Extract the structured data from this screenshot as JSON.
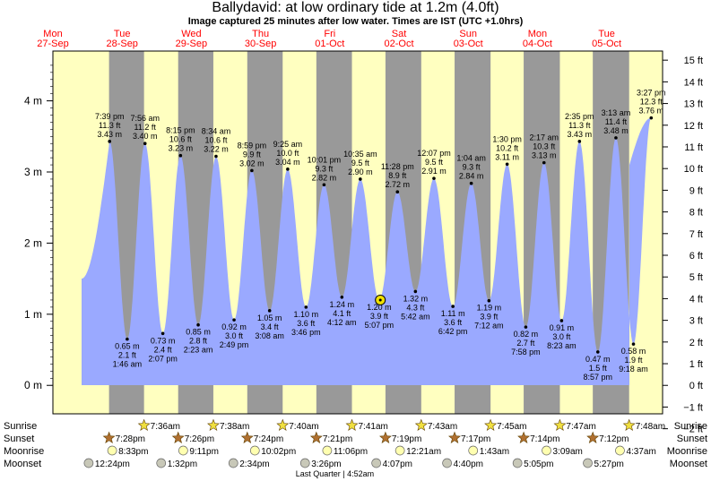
{
  "header": {
    "title": "Ballydavid: at low  ordinary tide at 1.2m (4.0ft)",
    "subtitle": "Image captured 25 minutes after low water. Times are IST (UTC +1.0hrs)"
  },
  "colors": {
    "day": "#ffffc0",
    "night": "#999999",
    "water": "#9aa9ff",
    "weekday_text": "#ff0000",
    "sunrise_star": "#f0e040",
    "sunset_star": "#b07030",
    "moonrise": "#ffffb0",
    "moonset": "#c8c8b8"
  },
  "chart_data": {
    "type": "area",
    "y_left_unit": "m",
    "y_right_unit": "ft",
    "y_left_ticks": [
      "0 m",
      "1 m",
      "2 m",
      "3 m",
      "4 m"
    ],
    "y_left_tick_values": [
      0,
      1,
      2,
      3,
      4
    ],
    "y_right_ticks": [
      "−2 ft",
      "−1 ft",
      "0 ft",
      "1 ft",
      "2 ft",
      "3 ft",
      "4 ft",
      "5 ft",
      "6 ft",
      "7 ft",
      "8 ft",
      "9 ft",
      "10 ft",
      "11 ft",
      "12 ft",
      "13 ft",
      "14 ft",
      "15 ft"
    ],
    "y_right_tick_values": [
      -2,
      -1,
      0,
      1,
      2,
      3,
      4,
      5,
      6,
      7,
      8,
      9,
      10,
      11,
      12,
      13,
      14,
      15
    ],
    "ylim_m": [
      -0.4,
      4.7
    ],
    "days": [
      {
        "weekday": "Mon",
        "date": "27-Sep"
      },
      {
        "weekday": "Tue",
        "date": "28-Sep"
      },
      {
        "weekday": "Wed",
        "date": "29-Sep"
      },
      {
        "weekday": "Thu",
        "date": "30-Sep"
      },
      {
        "weekday": "Fri",
        "date": "01-Oct"
      },
      {
        "weekday": "Sat",
        "date": "02-Oct"
      },
      {
        "weekday": "Sun",
        "date": "03-Oct"
      },
      {
        "weekday": "Mon",
        "date": "04-Oct"
      },
      {
        "weekday": "Tue",
        "date": "05-Oct"
      }
    ],
    "tides": [
      {
        "type": "high",
        "day": 0,
        "time": "7:39 pm",
        "ft": "11.3 ft",
        "m": "3.43 m",
        "value": 3.43
      },
      {
        "type": "low",
        "day": 1,
        "time": "1:46 am",
        "ft": "2.1 ft",
        "m": "0.65 m",
        "value": 0.65
      },
      {
        "type": "high",
        "day": 1,
        "time": "7:56 am",
        "ft": "11.2 ft",
        "m": "3.40 m",
        "value": 3.4
      },
      {
        "type": "low",
        "day": 1,
        "time": "2:07 pm",
        "ft": "2.4 ft",
        "m": "0.73 m",
        "value": 0.73
      },
      {
        "type": "high",
        "day": 1,
        "time": "8:15 pm",
        "ft": "10.6 ft",
        "m": "3.23 m",
        "value": 3.23
      },
      {
        "type": "low",
        "day": 2,
        "time": "2:23 am",
        "ft": "2.8 ft",
        "m": "0.85 m",
        "value": 0.85
      },
      {
        "type": "high",
        "day": 2,
        "time": "8:34 am",
        "ft": "10.6 ft",
        "m": "3.22 m",
        "value": 3.22
      },
      {
        "type": "low",
        "day": 2,
        "time": "2:49 pm",
        "ft": "3.0 ft",
        "m": "0.92 m",
        "value": 0.92
      },
      {
        "type": "high",
        "day": 2,
        "time": "8:59 pm",
        "ft": "9.9 ft",
        "m": "3.02 m",
        "value": 3.02
      },
      {
        "type": "low",
        "day": 3,
        "time": "3:08 am",
        "ft": "3.4 ft",
        "m": "1.05 m",
        "value": 1.05
      },
      {
        "type": "high",
        "day": 3,
        "time": "9:25 am",
        "ft": "10.0 ft",
        "m": "3.04 m",
        "value": 3.04
      },
      {
        "type": "low",
        "day": 3,
        "time": "3:46 pm",
        "ft": "3.6 ft",
        "m": "1.10 m",
        "value": 1.1
      },
      {
        "type": "high",
        "day": 3,
        "time": "10:01 pm",
        "ft": "9.3 ft",
        "m": "2.82 m",
        "value": 2.82
      },
      {
        "type": "low",
        "day": 4,
        "time": "4:12 am",
        "ft": "4.1 ft",
        "m": "1.24 m",
        "value": 1.24
      },
      {
        "type": "high",
        "day": 4,
        "time": "10:35 am",
        "ft": "9.5 ft",
        "m": "2.90 m",
        "value": 2.9
      },
      {
        "type": "low",
        "day": 4,
        "time": "5:07 pm",
        "ft": "3.9 ft",
        "m": "1.20 m",
        "value": 1.2
      },
      {
        "type": "high",
        "day": 4,
        "time": "11:28 pm",
        "ft": "8.9 ft",
        "m": "2.72 m",
        "value": 2.72
      },
      {
        "type": "low",
        "day": 5,
        "time": "5:42 am",
        "ft": "4.3 ft",
        "m": "1.32 m",
        "value": 1.32
      },
      {
        "type": "high",
        "day": 5,
        "time": "12:07 pm",
        "ft": "9.5 ft",
        "m": "2.91 m",
        "value": 2.91
      },
      {
        "type": "low",
        "day": 5,
        "time": "6:42 pm",
        "ft": "3.6 ft",
        "m": "1.11 m",
        "value": 1.11
      },
      {
        "type": "high",
        "day": 6,
        "time": "1:04 am",
        "ft": "9.3 ft",
        "m": "2.84 m",
        "value": 2.84
      },
      {
        "type": "low",
        "day": 6,
        "time": "7:12 am",
        "ft": "3.9 ft",
        "m": "1.19 m",
        "value": 1.19
      },
      {
        "type": "high",
        "day": 6,
        "time": "1:30 pm",
        "ft": "10.2 ft",
        "m": "3.11 m",
        "value": 3.11
      },
      {
        "type": "low",
        "day": 6,
        "time": "7:58 pm",
        "ft": "2.7 ft",
        "m": "0.82 m",
        "value": 0.82
      },
      {
        "type": "high",
        "day": 7,
        "time": "2:17 am",
        "ft": "10.3 ft",
        "m": "3.13 m",
        "value": 3.13
      },
      {
        "type": "low",
        "day": 7,
        "time": "8:23 am",
        "ft": "3.0 ft",
        "m": "0.91 m",
        "value": 0.91
      },
      {
        "type": "high",
        "day": 7,
        "time": "2:35 pm",
        "ft": "11.3 ft",
        "m": "3.43 m",
        "value": 3.43
      },
      {
        "type": "low",
        "day": 7,
        "time": "8:57 pm",
        "ft": "1.5 ft",
        "m": "0.47 m",
        "value": 0.47
      },
      {
        "type": "high",
        "day": 8,
        "time": "3:13 am",
        "ft": "11.4 ft",
        "m": "3.48 m",
        "value": 3.48
      },
      {
        "type": "low",
        "day": 8,
        "time": "9:18 am",
        "ft": "1.9 ft",
        "m": "0.58 m",
        "value": 0.58
      },
      {
        "type": "high",
        "day": 8,
        "time": "3:27 pm",
        "ft": "12.3 ft",
        "m": "3.76 m",
        "value": 3.76
      }
    ],
    "current": {
      "day": 4,
      "time": "5:32 pm",
      "value": 1.2
    },
    "sunrise": [
      {
        "day": 1,
        "time": "7:36am"
      },
      {
        "day": 2,
        "time": "7:38am"
      },
      {
        "day": 3,
        "time": "7:40am"
      },
      {
        "day": 4,
        "time": "7:41am"
      },
      {
        "day": 5,
        "time": "7:43am"
      },
      {
        "day": 6,
        "time": "7:45am"
      },
      {
        "day": 7,
        "time": "7:47am"
      },
      {
        "day": 8,
        "time": "7:48am"
      }
    ],
    "sunset": [
      {
        "day": 0,
        "time": "7:28pm"
      },
      {
        "day": 1,
        "time": "7:26pm"
      },
      {
        "day": 2,
        "time": "7:24pm"
      },
      {
        "day": 3,
        "time": "7:21pm"
      },
      {
        "day": 4,
        "time": "7:19pm"
      },
      {
        "day": 5,
        "time": "7:17pm"
      },
      {
        "day": 6,
        "time": "7:14pm"
      },
      {
        "day": 7,
        "time": "7:12pm"
      }
    ],
    "moonrise": [
      {
        "day": 0,
        "time": "8:33pm"
      },
      {
        "day": 1,
        "time": "9:11pm"
      },
      {
        "day": 2,
        "time": "10:02pm"
      },
      {
        "day": 3,
        "time": "11:06pm"
      },
      {
        "day": 5,
        "time": "12:21am"
      },
      {
        "day": 6,
        "time": "1:43am"
      },
      {
        "day": 7,
        "time": "3:09am"
      },
      {
        "day": 8,
        "time": "4:37am"
      }
    ],
    "moonset": [
      {
        "day": 0,
        "time": "12:24pm"
      },
      {
        "day": 1,
        "time": "1:32pm"
      },
      {
        "day": 2,
        "time": "2:34pm"
      },
      {
        "day": 3,
        "time": "3:26pm"
      },
      {
        "day": 4,
        "time": "4:07pm"
      },
      {
        "day": 5,
        "time": "4:40pm"
      },
      {
        "day": 6,
        "time": "5:05pm"
      },
      {
        "day": 7,
        "time": "5:27pm"
      }
    ],
    "row_labels": {
      "sunrise": "Sunrise",
      "sunset": "Sunset",
      "moonrise": "Moonrise",
      "moonset": "Moonset"
    },
    "moon_phase": {
      "day": 4,
      "time": "4:52am",
      "label": "Last Quarter | 4:52am"
    }
  }
}
